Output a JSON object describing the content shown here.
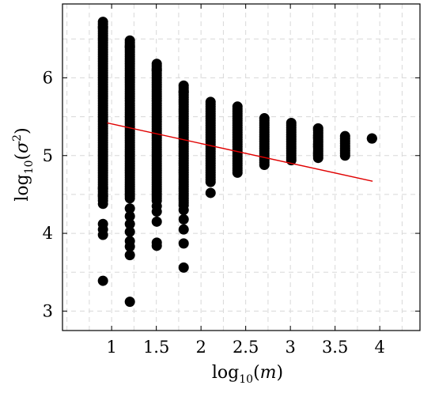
{
  "chart_data": {
    "type": "scatter",
    "title": "",
    "xlabel": {
      "base": "log",
      "sub": "10",
      "var": "m"
    },
    "ylabel": {
      "base": "log",
      "sub": "10",
      "var": "σ",
      "sup": "2"
    },
    "xlim": [
      0.45,
      4.45
    ],
    "ylim": [
      2.75,
      6.95
    ],
    "x_ticks": [
      1,
      1.5,
      2,
      2.5,
      3,
      3.5,
      4
    ],
    "x_tick_labels": [
      "1",
      "1.5",
      "2",
      "2.5",
      "3",
      "3.5",
      "4"
    ],
    "y_ticks": [
      3,
      4,
      5,
      6
    ],
    "y_tick_labels": [
      "3",
      "4",
      "5",
      "6"
    ],
    "grid": true,
    "fit_line": {
      "color": "#e00000",
      "x": [
        0.95,
        3.92
      ],
      "y": [
        5.42,
        4.67
      ]
    },
    "series": [
      {
        "color": "#000000",
        "groups": [
          {
            "x": 0.903,
            "min": 4.42,
            "max": 6.72,
            "extra": [
              6.65,
              4.58,
              4.48,
              4.38,
              4.12,
              4.05,
              3.98,
              3.39
            ]
          },
          {
            "x": 1.204,
            "min": 4.45,
            "max": 6.48,
            "extra": [
              6.4,
              4.32,
              4.22,
              4.12,
              4.02,
              3.9,
              3.83,
              3.72,
              3.12
            ]
          },
          {
            "x": 1.505,
            "min": 4.42,
            "max": 6.18,
            "extra": [
              6.1,
              4.35,
              4.28,
              4.15,
              3.88,
              3.84
            ]
          },
          {
            "x": 1.806,
            "min": 4.36,
            "max": 5.9,
            "extra": [
              5.82,
              4.3,
              4.18,
              4.05,
              3.87,
              3.56
            ]
          },
          {
            "x": 2.107,
            "min": 4.66,
            "max": 5.69,
            "extra": [
              4.52
            ]
          },
          {
            "x": 2.408,
            "min": 4.78,
            "max": 5.63,
            "extra": []
          },
          {
            "x": 2.709,
            "min": 4.88,
            "max": 5.48,
            "extra": []
          },
          {
            "x": 3.01,
            "min": 4.94,
            "max": 5.42,
            "extra": []
          },
          {
            "x": 3.311,
            "min": 4.97,
            "max": 5.35,
            "extra": []
          },
          {
            "x": 3.612,
            "min": 5.0,
            "max": 5.25,
            "extra": []
          },
          {
            "x": 3.913,
            "min": 5.22,
            "max": 5.22,
            "extra": []
          }
        ]
      }
    ]
  }
}
